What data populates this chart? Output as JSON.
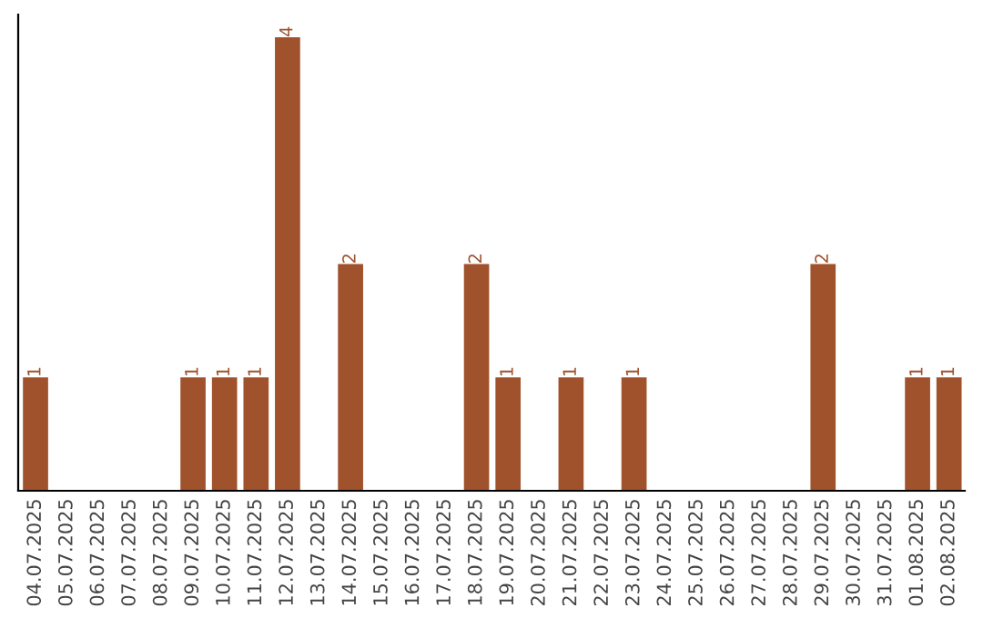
{
  "chart_data": {
    "type": "bar",
    "categories": [
      "04.07.2025",
      "05.07.2025",
      "06.07.2025",
      "07.07.2025",
      "08.07.2025",
      "09.07.2025",
      "10.07.2025",
      "11.07.2025",
      "12.07.2025",
      "13.07.2025",
      "14.07.2025",
      "15.07.2025",
      "16.07.2025",
      "17.07.2025",
      "18.07.2025",
      "19.07.2025",
      "20.07.2025",
      "21.07.2025",
      "22.07.2025",
      "23.07.2025",
      "24.07.2025",
      "25.07.2025",
      "26.07.2025",
      "27.07.2025",
      "28.07.2025",
      "29.07.2025",
      "30.07.2025",
      "31.07.2025",
      "01.08.2025",
      "02.08.2025"
    ],
    "values": [
      1,
      0,
      0,
      0,
      0,
      1,
      1,
      1,
      4,
      0,
      2,
      0,
      0,
      0,
      2,
      1,
      0,
      1,
      0,
      1,
      0,
      0,
      0,
      0,
      0,
      2,
      0,
      0,
      1,
      1
    ],
    "value_labels": [
      "1",
      null,
      null,
      null,
      null,
      "1",
      "1",
      "1",
      "4",
      null,
      "2",
      null,
      null,
      null,
      "2",
      "1",
      null,
      "1",
      null,
      "1",
      null,
      null,
      null,
      null,
      null,
      "2",
      null,
      null,
      "1",
      "1"
    ],
    "color": "#a0522d",
    "grid": false,
    "legend": false
  }
}
